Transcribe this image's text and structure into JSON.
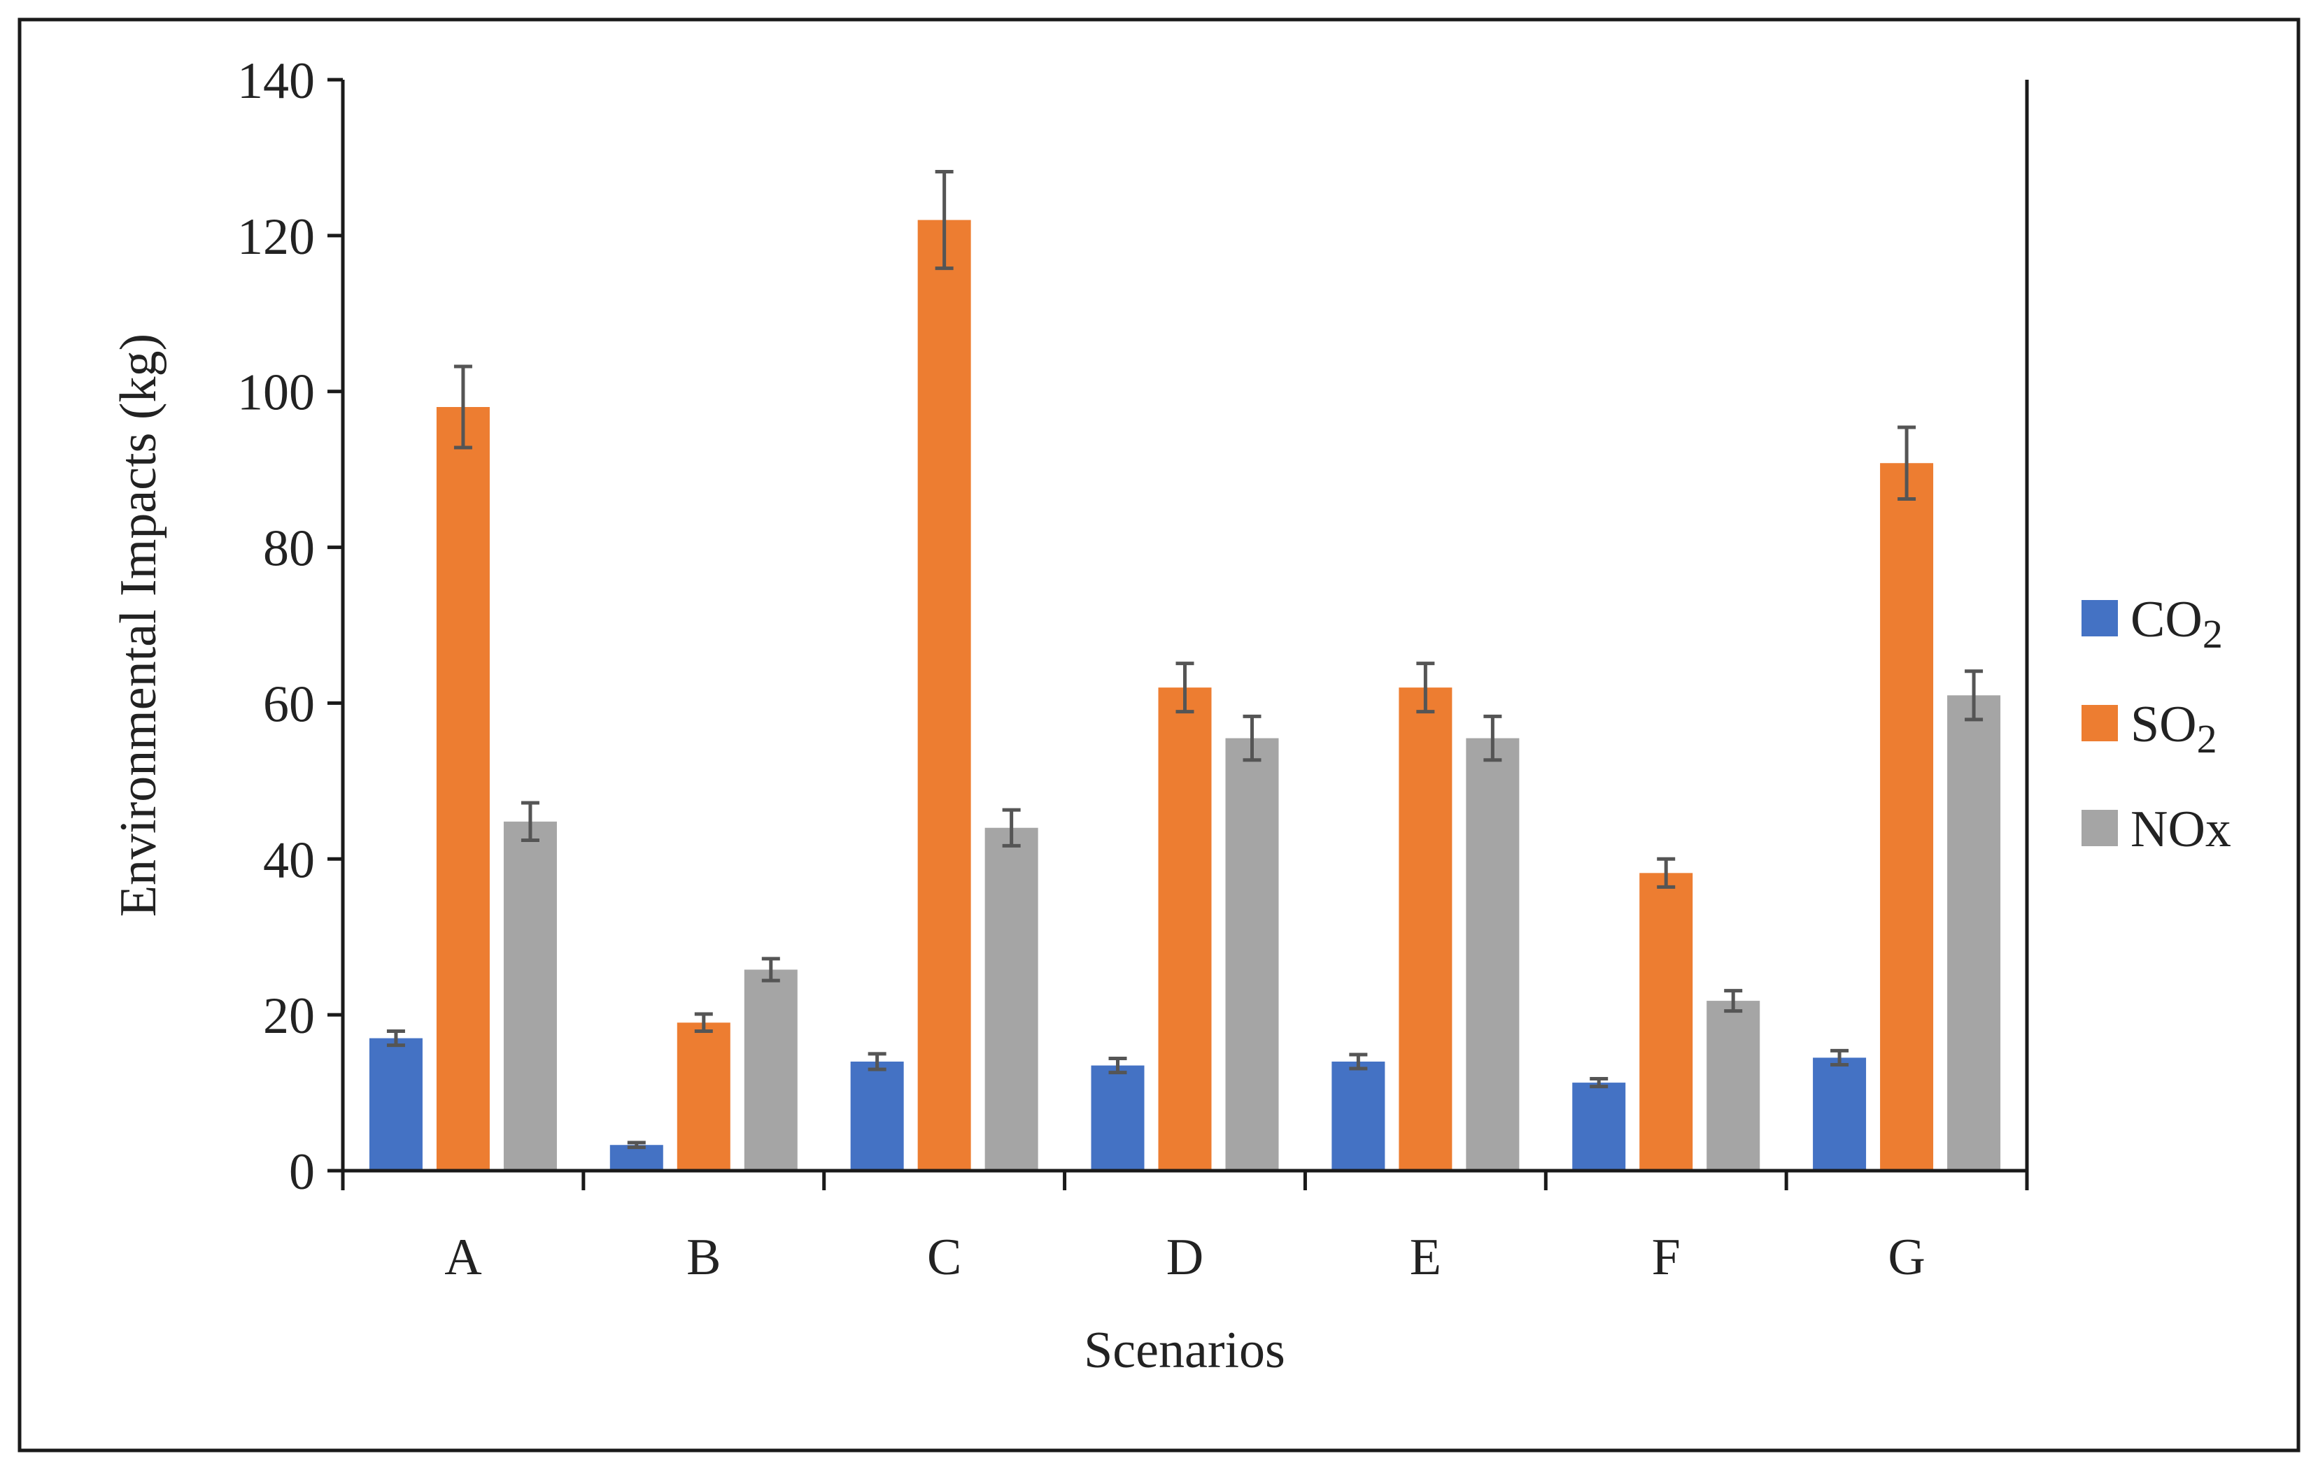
{
  "chart_data": {
    "type": "bar",
    "title": "",
    "xlabel": "Scenarios",
    "ylabel": "Environmental Impacts (kg)",
    "ylim": [
      0,
      140
    ],
    "yticks": [
      0,
      20,
      40,
      60,
      80,
      100,
      120,
      140
    ],
    "categories": [
      "A",
      "B",
      "C",
      "D",
      "E",
      "F",
      "G"
    ],
    "legend_position": "right",
    "series": [
      {
        "name": "CO₂",
        "legend_main": "CO",
        "legend_sub": "2",
        "color": "#4472C4",
        "values": [
          17,
          3.3,
          14,
          13.5,
          14,
          11.3,
          14.5
        ],
        "errors": [
          0.9,
          0.3,
          1.0,
          0.9,
          0.9,
          0.5,
          0.9
        ]
      },
      {
        "name": "SO₂",
        "legend_main": "SO",
        "legend_sub": "2",
        "color": "#ED7D31",
        "values": [
          98,
          19,
          122,
          62,
          62,
          38.2,
          90.8
        ],
        "errors": [
          5.2,
          1.1,
          6.2,
          3.1,
          3.1,
          1.8,
          4.6
        ]
      },
      {
        "name": "NOx",
        "legend_main": "NOx",
        "legend_sub": "",
        "color": "#A5A5A5",
        "values": [
          44.8,
          25.8,
          44,
          55.5,
          55.5,
          21.8,
          61
        ],
        "errors": [
          2.4,
          1.4,
          2.3,
          2.8,
          2.8,
          1.3,
          3.1
        ]
      }
    ]
  }
}
